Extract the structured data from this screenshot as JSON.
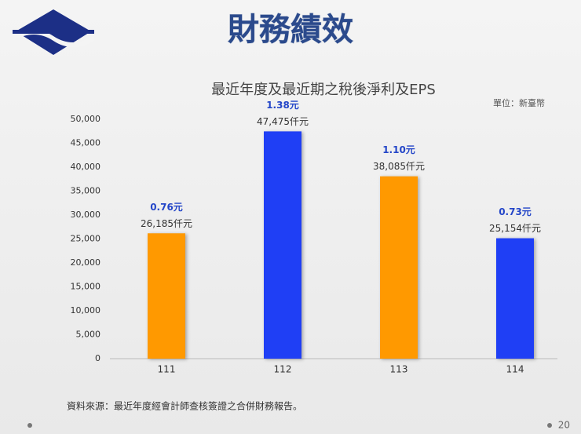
{
  "slide_title": "財務績效",
  "chart_data": {
    "type": "bar",
    "title": "最近年度及最近期之稅後淨利及EPS",
    "unit_note": "單位：新臺幣",
    "categories": [
      "111",
      "112",
      "113",
      "114"
    ],
    "values": [
      26185,
      47475,
      38085,
      25154
    ],
    "value_labels": [
      "26,185仟元",
      "47,475仟元",
      "38,085仟元",
      "25,154仟元"
    ],
    "colors": [
      "#ff9900",
      "#1f3ff5",
      "#ff9900",
      "#1f3ff5"
    ],
    "eps": {
      "values": [
        0.76,
        1.38,
        1.1,
        0.73
      ],
      "value_labels": [
        "0.76元",
        "1.38元",
        "1.10元",
        "0.73元"
      ],
      "color": "#2446c8"
    },
    "ylim": [
      0,
      50000
    ],
    "yticks": [
      0,
      {
        "value": 5000,
        "label": "5,000"
      },
      {
        "value": 10000,
        "label": "10,000"
      },
      {
        "value": 15000,
        "label": "15,000"
      },
      {
        "value": 20000,
        "label": "20,000"
      },
      {
        "value": 25000,
        "label": "25,000"
      },
      {
        "value": 30000,
        "label": "30,000"
      },
      {
        "value": 35000,
        "label": "35,000"
      },
      {
        "value": 40000,
        "label": "40,000"
      },
      {
        "value": 45000,
        "label": "45,000"
      },
      {
        "value": 50000,
        "label": "50,000"
      }
    ],
    "grid": false
  },
  "source_note": "資料來源：最近年度經會計師查核簽證之合併財務報告。",
  "page_number": "20"
}
